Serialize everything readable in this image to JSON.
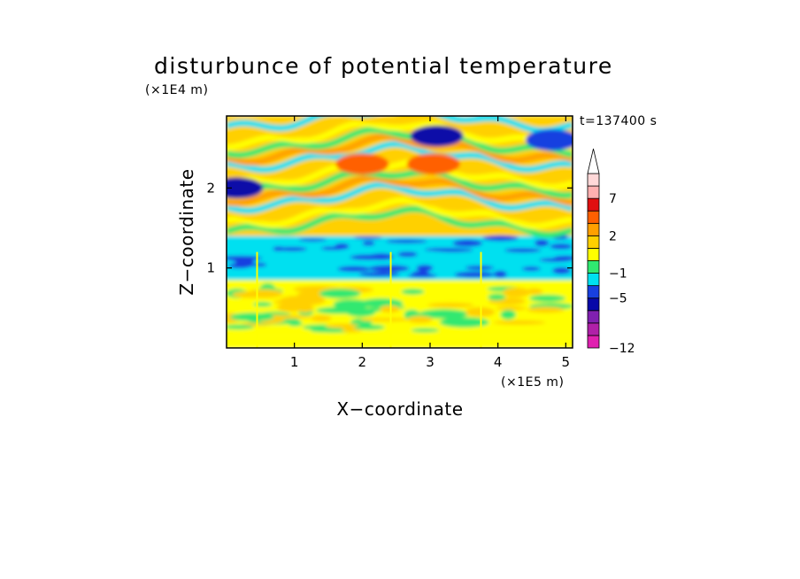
{
  "chart_data": {
    "type": "heatmap",
    "title": "disturbunce of potential temperature",
    "xlabel": "X−coordinate",
    "ylabel": "Z−coordinate",
    "x_unit": "(×1E5 m)",
    "y_unit": "(×1E4 m)",
    "time_label": "t=137400 s",
    "xlim": [
      0,
      5.1
    ],
    "ylim": [
      0,
      2.9
    ],
    "x_ticks": [
      1,
      2,
      3,
      4,
      5
    ],
    "y_ticks": [
      1,
      2
    ],
    "colorbar": {
      "levels": [
        -12,
        -11,
        -9,
        -7,
        -5,
        -3,
        -1,
        0,
        1,
        2,
        3,
        5,
        7,
        9,
        11
      ],
      "labeled_ticks": [
        -12,
        -5,
        -1,
        2,
        7
      ],
      "colors": [
        "#e020b0",
        "#b020a8",
        "#8020b0",
        "#0808a8",
        "#1840e0",
        "#00e0f0",
        "#30e870",
        "#ffff00",
        "#ffd000",
        "#ffa000",
        "#ff6000",
        "#e01010",
        "#ffb0b0",
        "#ffd8d8"
      ],
      "extend": "max"
    },
    "bands": [
      {
        "z_range": [
          0,
          0.15
        ],
        "value": 0,
        "note": "green/yellow near surface"
      },
      {
        "z_range": [
          0.15,
          0.85
        ],
        "value": 0.5,
        "note": "yellow-green layer"
      },
      {
        "z_range": [
          0.85,
          1.4
        ],
        "value": -1.5,
        "note": "cyan layer with blue streaks"
      },
      {
        "z_range": [
          1.4,
          2.9
        ],
        "value": 1,
        "note": "wave pattern, orange/red peaks near x=1.5-3.3"
      }
    ],
    "features": [
      {
        "x": 2.0,
        "z": 2.3,
        "value": 3,
        "label": "warm anomaly"
      },
      {
        "x": 3.05,
        "z": 2.3,
        "value": 3,
        "label": "warm anomaly"
      },
      {
        "x": 3.1,
        "z": 2.65,
        "value": -6,
        "label": "cold anomaly"
      },
      {
        "x": 0.15,
        "z": 2.0,
        "value": -6,
        "label": "cold anomaly"
      },
      {
        "x": 4.8,
        "z": 2.6,
        "value": -5,
        "label": "cold anomaly"
      }
    ]
  }
}
